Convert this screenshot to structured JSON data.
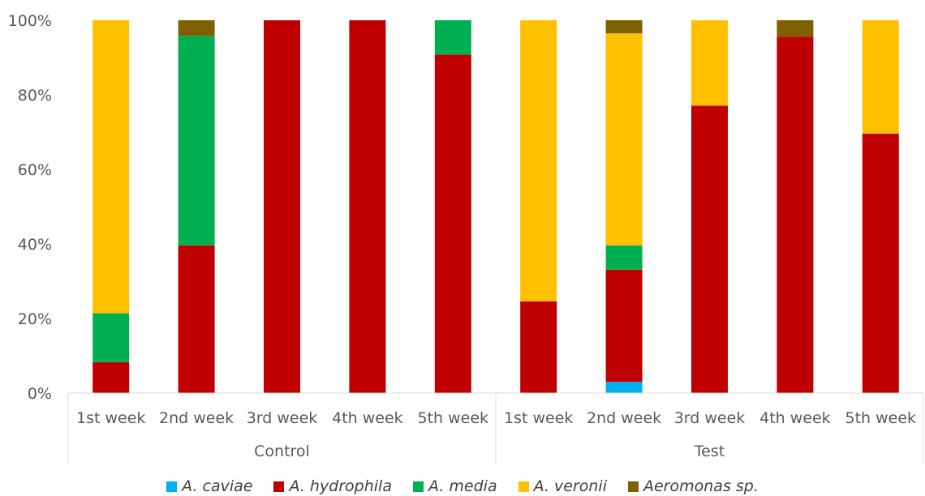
{
  "chart_data": {
    "type": "bar",
    "stacked": true,
    "ylim": [
      0,
      100
    ],
    "yticks": [
      0,
      20,
      40,
      60,
      80,
      100
    ],
    "ytick_suffix": "%",
    "grid": false,
    "legend_position": "bottom",
    "groups": [
      {
        "label": "Control",
        "categories": [
          "1st week",
          "2nd week",
          "3rd week",
          "4th week",
          "5th week"
        ]
      },
      {
        "label": "Test",
        "categories": [
          "1st week",
          "2nd week",
          "3rd week",
          "4th week",
          "5th week"
        ]
      }
    ],
    "series": [
      {
        "name": "A. caviae",
        "color": "#00B0F0",
        "values": [
          0,
          0,
          0,
          0,
          0,
          0,
          3,
          0,
          0,
          0
        ]
      },
      {
        "name": "A. hydrophila",
        "color": "#C00000",
        "values": [
          8.3,
          39.6,
          100,
          100,
          90.8,
          24.6,
          30.1,
          77.1,
          95.6,
          69.6
        ]
      },
      {
        "name": "A. media",
        "color": "#00B050",
        "values": [
          13.1,
          56.2,
          0,
          0,
          9.2,
          0,
          6.5,
          0,
          0,
          0
        ]
      },
      {
        "name": "A. veronii",
        "color": "#FFC000",
        "values": [
          78.6,
          0,
          0,
          0,
          0,
          75.4,
          56.9,
          22.9,
          0,
          30.4
        ]
      },
      {
        "name": "Aeromonas sp.",
        "color": "#7F6000",
        "values": [
          0,
          4.2,
          0,
          0,
          0,
          0,
          3.5,
          0,
          4.4,
          0
        ]
      }
    ]
  }
}
